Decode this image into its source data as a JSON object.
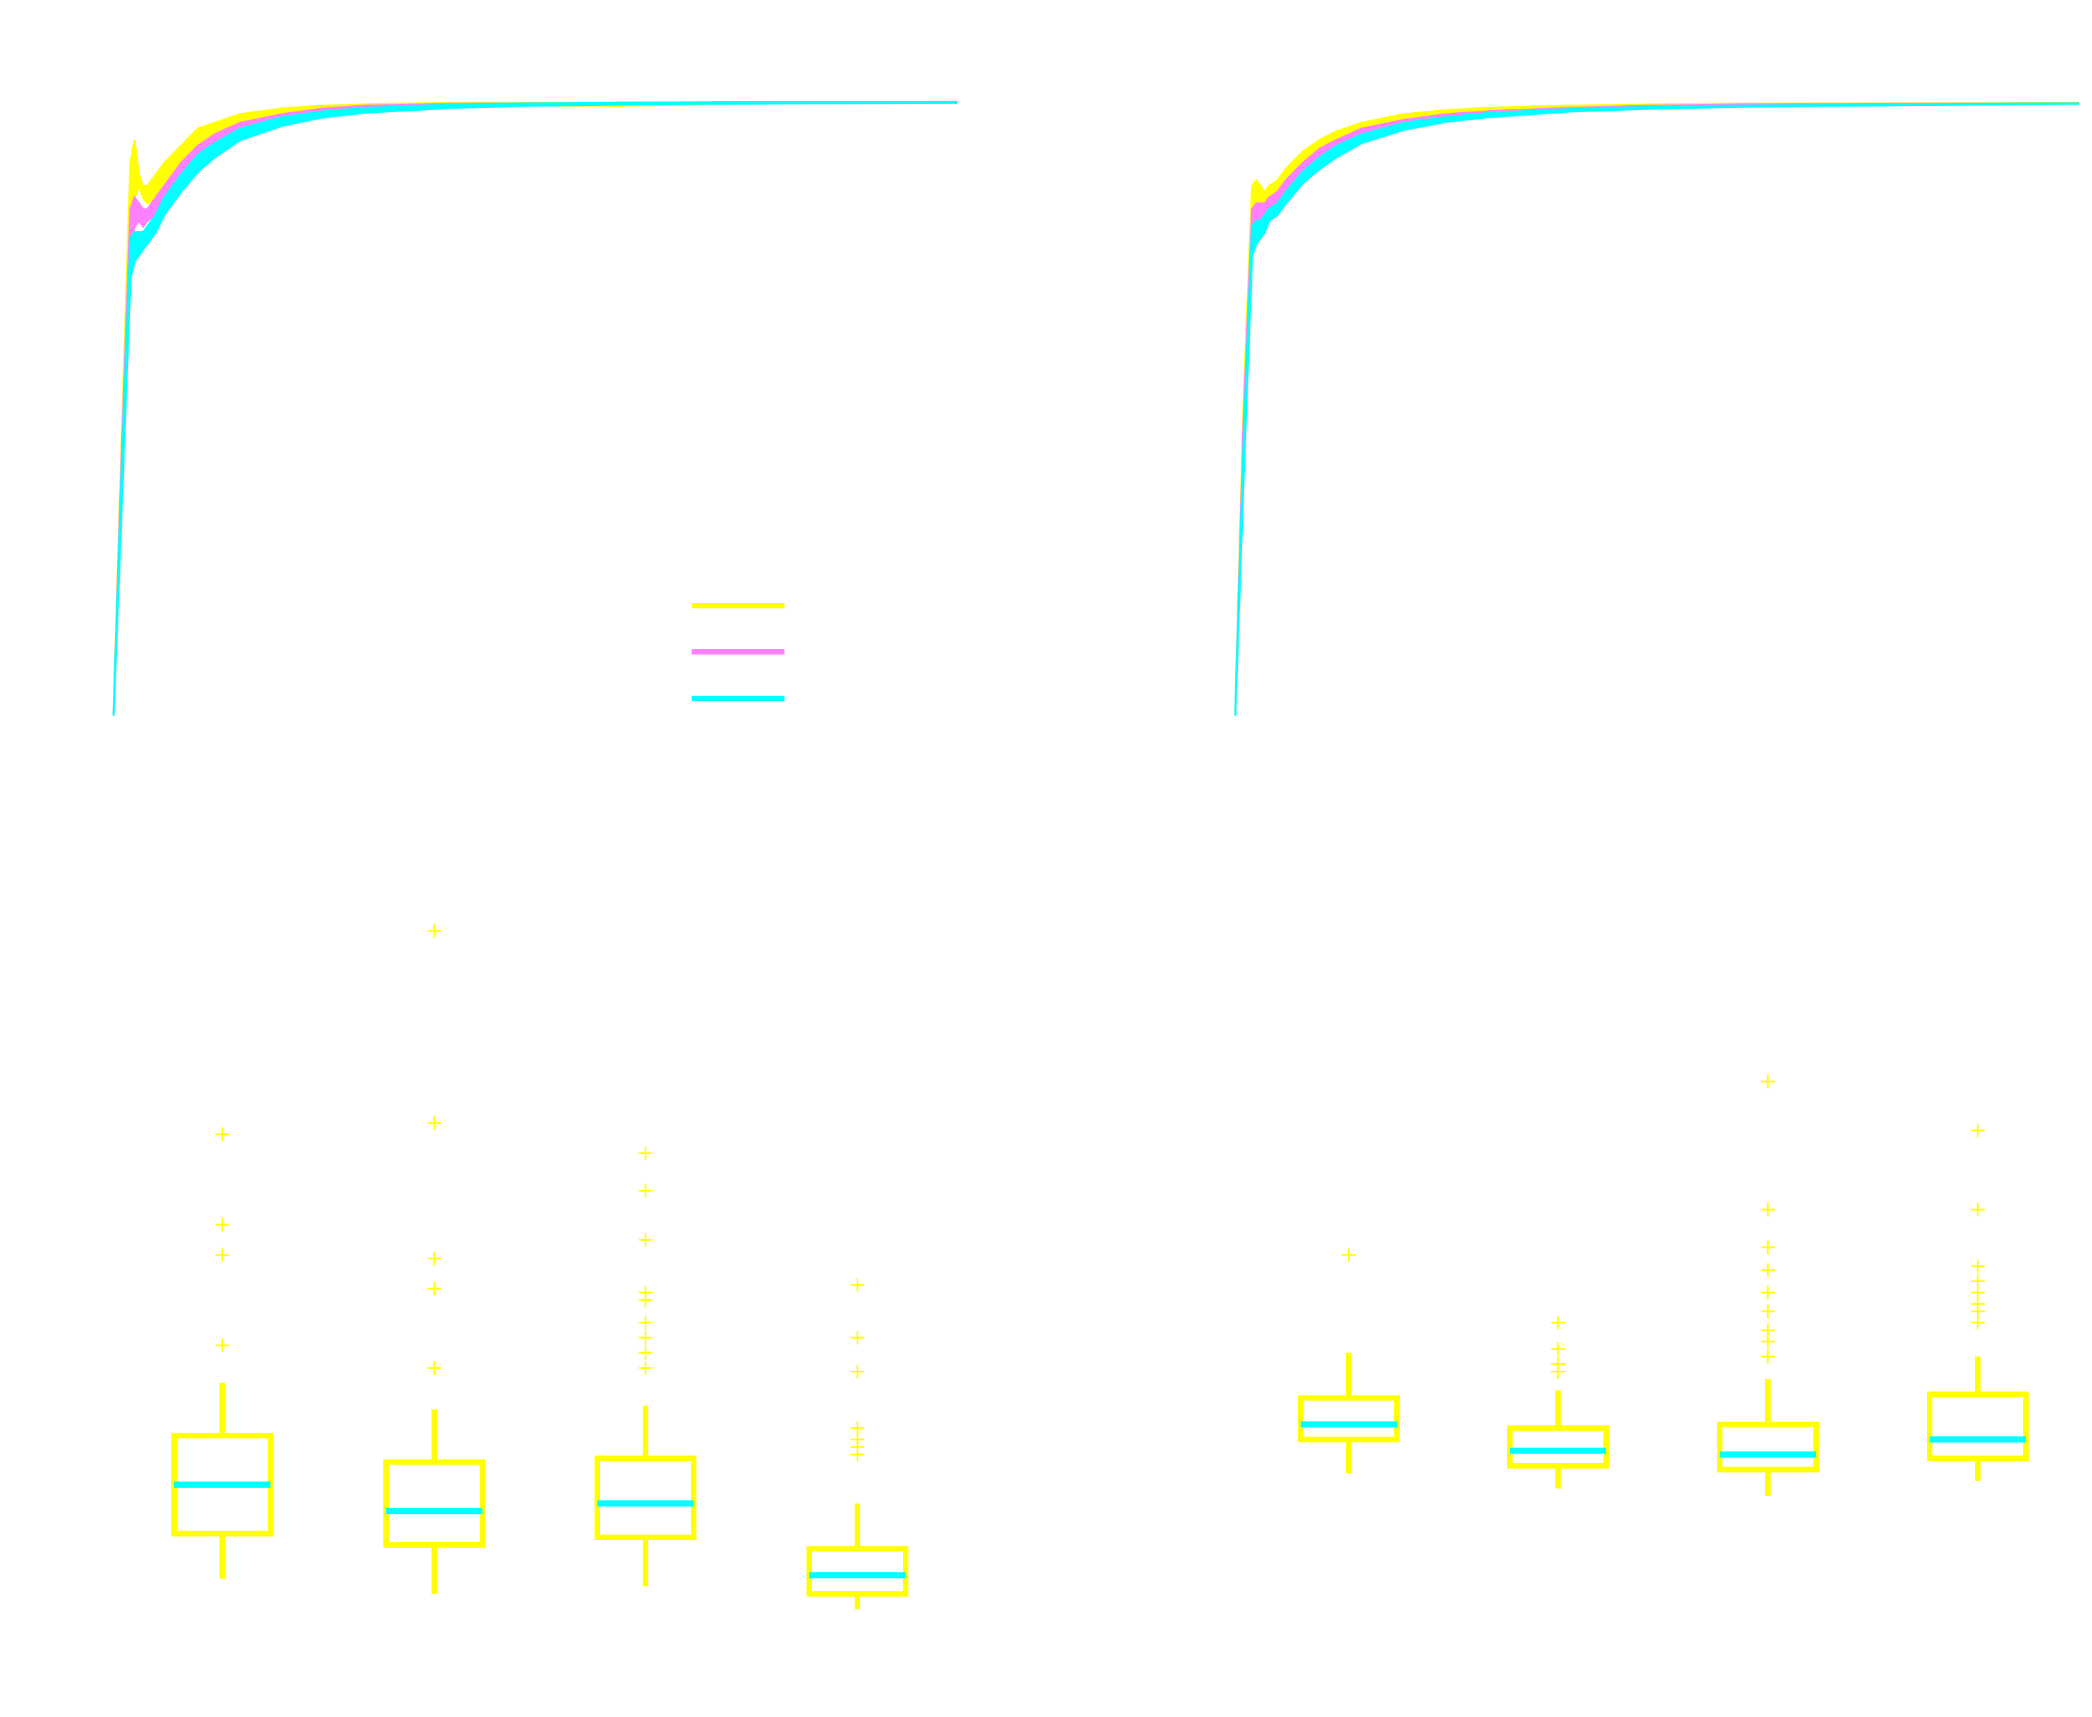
{
  "colors": {
    "background": "#ffffff",
    "series_yellow": "#ffff00",
    "series_magenta": "#ff80ff",
    "series_cyan": "#00ffff",
    "box": "#ffff00",
    "median": "#00ffff",
    "outlier": "#ffff00"
  },
  "chart_data": [
    {
      "type": "line",
      "grid": false,
      "legend_position": "center-right",
      "xlim": [
        0,
        100
      ],
      "ylim": [
        0,
        1.1
      ],
      "series": [
        {
          "color": "#ffff00",
          "x": [
            0,
            1,
            2,
            2.5,
            3,
            3.5,
            4,
            5,
            6,
            8,
            10,
            12,
            15,
            20,
            25,
            30,
            40,
            50,
            60,
            80,
            100
          ],
          "y_low": [
            0.0,
            0.45,
            0.88,
            0.9,
            0.92,
            0.9,
            0.89,
            0.9,
            0.92,
            0.95,
            0.98,
            1.0,
            1.02,
            1.04,
            1.05,
            1.055,
            1.06,
            1.06,
            1.06,
            1.065,
            1.065
          ],
          "y_high": [
            0.0,
            0.5,
            0.96,
            1.0,
            0.94,
            0.92,
            0.92,
            0.94,
            0.96,
            0.99,
            1.02,
            1.03,
            1.045,
            1.055,
            1.06,
            1.062,
            1.065,
            1.065,
            1.065,
            1.066,
            1.066
          ]
        },
        {
          "color": "#ff80ff",
          "x": [
            0,
            1,
            2,
            2.5,
            3,
            3.5,
            4,
            5,
            6,
            8,
            10,
            12,
            15,
            20,
            25,
            30,
            40,
            50,
            60,
            80,
            100
          ],
          "y_low": [
            0.0,
            0.42,
            0.82,
            0.85,
            0.86,
            0.85,
            0.86,
            0.87,
            0.89,
            0.93,
            0.96,
            0.985,
            1.01,
            1.03,
            1.045,
            1.05,
            1.058,
            1.06,
            1.062,
            1.064,
            1.065
          ],
          "y_high": [
            0.0,
            0.47,
            0.88,
            0.9,
            0.89,
            0.88,
            0.88,
            0.9,
            0.92,
            0.96,
            0.99,
            1.01,
            1.03,
            1.045,
            1.055,
            1.06,
            1.063,
            1.064,
            1.065,
            1.066,
            1.066
          ]
        },
        {
          "color": "#00ffff",
          "x": [
            0,
            1,
            2,
            2.5,
            3,
            3.5,
            4,
            5,
            6,
            8,
            10,
            12,
            15,
            20,
            25,
            30,
            40,
            50,
            60,
            80,
            100
          ],
          "y_low": [
            0.0,
            0.38,
            0.76,
            0.79,
            0.8,
            0.81,
            0.82,
            0.84,
            0.87,
            0.91,
            0.945,
            0.97,
            1.0,
            1.025,
            1.04,
            1.048,
            1.056,
            1.06,
            1.062,
            1.064,
            1.065
          ],
          "y_high": [
            0.0,
            0.44,
            0.83,
            0.84,
            0.84,
            0.84,
            0.85,
            0.87,
            0.9,
            0.94,
            0.975,
            0.995,
            1.02,
            1.04,
            1.05,
            1.056,
            1.062,
            1.064,
            1.065,
            1.066,
            1.066
          ]
        }
      ]
    },
    {
      "type": "line",
      "grid": false,
      "xlim": [
        0,
        100
      ],
      "ylim": [
        0,
        1.1
      ],
      "series": [
        {
          "color": "#ffff00",
          "x": [
            0,
            1,
            2,
            2.5,
            3,
            3.5,
            4,
            5,
            6,
            8,
            10,
            12,
            15,
            20,
            25,
            30,
            40,
            50,
            60,
            80,
            100
          ],
          "y_low": [
            0.0,
            0.5,
            0.86,
            0.88,
            0.89,
            0.89,
            0.9,
            0.91,
            0.93,
            0.96,
            0.98,
            1.0,
            1.02,
            1.035,
            1.045,
            1.05,
            1.055,
            1.058,
            1.06,
            1.062,
            1.063
          ],
          "y_high": [
            0.0,
            0.55,
            0.92,
            0.93,
            0.92,
            0.91,
            0.92,
            0.93,
            0.95,
            0.98,
            1.0,
            1.015,
            1.03,
            1.045,
            1.052,
            1.056,
            1.06,
            1.062,
            1.063,
            1.064,
            1.065
          ]
        },
        {
          "color": "#ff80ff",
          "x": [
            0,
            1,
            2,
            2.5,
            3,
            3.5,
            4,
            5,
            6,
            8,
            10,
            12,
            15,
            20,
            25,
            30,
            40,
            50,
            60,
            80,
            100
          ],
          "y_low": [
            0.0,
            0.47,
            0.83,
            0.85,
            0.86,
            0.87,
            0.88,
            0.89,
            0.91,
            0.94,
            0.965,
            0.985,
            1.005,
            1.025,
            1.038,
            1.045,
            1.052,
            1.056,
            1.058,
            1.061,
            1.063
          ],
          "y_high": [
            0.0,
            0.52,
            0.88,
            0.89,
            0.89,
            0.89,
            0.9,
            0.91,
            0.93,
            0.96,
            0.985,
            1.0,
            1.02,
            1.035,
            1.045,
            1.05,
            1.056,
            1.06,
            1.062,
            1.063,
            1.064
          ]
        },
        {
          "color": "#00ffff",
          "x": [
            0,
            1,
            2,
            2.5,
            3,
            3.5,
            4,
            5,
            6,
            8,
            10,
            12,
            15,
            20,
            25,
            30,
            40,
            50,
            60,
            80,
            100
          ],
          "y_low": [
            0.0,
            0.42,
            0.8,
            0.82,
            0.83,
            0.84,
            0.86,
            0.87,
            0.89,
            0.925,
            0.95,
            0.97,
            0.995,
            1.018,
            1.032,
            1.04,
            1.05,
            1.055,
            1.058,
            1.061,
            1.063
          ],
          "y_high": [
            0.0,
            0.48,
            0.85,
            0.86,
            0.86,
            0.87,
            0.88,
            0.89,
            0.91,
            0.945,
            0.97,
            0.99,
            1.01,
            1.03,
            1.04,
            1.047,
            1.054,
            1.058,
            1.06,
            1.062,
            1.064
          ]
        }
      ]
    },
    {
      "type": "box",
      "grid": false,
      "ylim": [
        0,
        1
      ],
      "boxes": [
        {
          "whisker_low": 0.06,
          "q1": 0.12,
          "median": 0.185,
          "q3": 0.25,
          "whisker_high": 0.32,
          "outliers": [
            0.37,
            0.49,
            0.53,
            0.65
          ]
        },
        {
          "whisker_low": 0.04,
          "q1": 0.105,
          "median": 0.15,
          "q3": 0.215,
          "whisker_high": 0.285,
          "outliers": [
            0.34,
            0.445,
            0.485,
            0.665,
            0.92
          ]
        },
        {
          "whisker_low": 0.05,
          "q1": 0.115,
          "median": 0.16,
          "q3": 0.22,
          "whisker_high": 0.29,
          "outliers": [
            0.34,
            0.36,
            0.38,
            0.4,
            0.43,
            0.44,
            0.51,
            0.575,
            0.625
          ]
        },
        {
          "whisker_low": 0.02,
          "q1": 0.04,
          "median": 0.065,
          "q3": 0.1,
          "whisker_high": 0.16,
          "outliers": [
            0.225,
            0.235,
            0.245,
            0.26,
            0.335,
            0.38,
            0.45
          ]
        }
      ]
    },
    {
      "type": "box",
      "grid": false,
      "ylim": [
        0,
        1
      ],
      "boxes": [
        {
          "whisker_low": 0.2,
          "q1": 0.245,
          "median": 0.265,
          "q3": 0.3,
          "whisker_high": 0.36,
          "outliers": [
            0.49
          ]
        },
        {
          "whisker_low": 0.18,
          "q1": 0.21,
          "median": 0.23,
          "q3": 0.26,
          "whisker_high": 0.31,
          "outliers": [
            0.335,
            0.345,
            0.365,
            0.4
          ]
        },
        {
          "whisker_low": 0.17,
          "q1": 0.205,
          "median": 0.225,
          "q3": 0.265,
          "whisker_high": 0.325,
          "outliers": [
            0.355,
            0.375,
            0.39,
            0.415,
            0.44,
            0.47,
            0.5,
            0.55,
            0.72
          ]
        },
        {
          "whisker_low": 0.19,
          "q1": 0.22,
          "median": 0.245,
          "q3": 0.305,
          "whisker_high": 0.355,
          "outliers": [
            0.4,
            0.415,
            0.425,
            0.44,
            0.455,
            0.475,
            0.55,
            0.655
          ]
        }
      ]
    }
  ]
}
